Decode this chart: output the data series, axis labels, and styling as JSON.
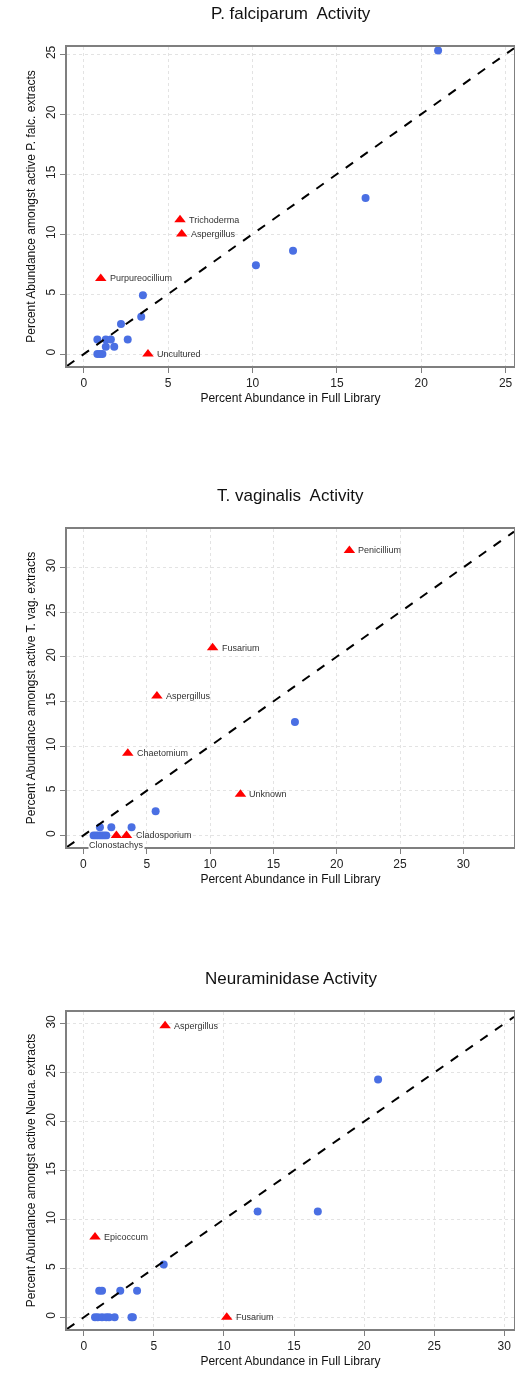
{
  "chart_data": [
    {
      "type": "scatter",
      "title": "P. falciparum  Activity",
      "xlabel": "Percent Abundance in Full Library",
      "ylabel": "Percent Abundance amongst active P. falc. extracts",
      "xlim": [
        -1.0,
        25.5
      ],
      "ylim": [
        -1.0,
        25.6
      ],
      "xticks": [
        0,
        5,
        10,
        15,
        20,
        25
      ],
      "yticks": [
        0,
        5,
        10,
        15,
        20,
        25
      ],
      "grid": true,
      "series": [
        {
          "color": "#4a6fe3",
          "marker": "circle",
          "x": [
            21.0,
            16.7,
            12.4,
            10.2,
            3.5,
            3.4,
            2.2,
            2.6,
            0.8,
            1.3,
            1.6,
            1.3,
            1.8,
            0.8,
            0.95,
            1.1
          ],
          "values": [
            25.3,
            13.0,
            8.6,
            7.4,
            4.9,
            3.1,
            2.5,
            1.2,
            1.2,
            1.2,
            1.2,
            0.6,
            0.6,
            0,
            0,
            0
          ]
        },
        {
          "color": "#ff0000",
          "marker": "triangle",
          "x": [
            5.7,
            5.8,
            1.0,
            3.8
          ],
          "values": [
            11.2,
            10.0,
            6.3,
            0
          ]
        },
        {
          "type": "line",
          "color": "#000000",
          "line_style": "dashed",
          "marker": "none",
          "x": [
            -1.0,
            25.5
          ],
          "values": [
            -1.0,
            25.5
          ]
        }
      ],
      "annotations": [
        {
          "text": "Trichoderma",
          "x": 5.7,
          "y": 11.2
        },
        {
          "text": "Aspergillus",
          "x": 5.8,
          "y": 10.0
        },
        {
          "text": "Purpureocillium",
          "x": 1.0,
          "y": 6.3
        },
        {
          "text": "Uncultured",
          "x": 3.8,
          "y": 0
        }
      ]
    },
    {
      "type": "scatter",
      "title": "T. vaginalis  Activity",
      "xlabel": "Percent Abundance in Full Library",
      "ylabel": "Percent Abundance amongst active T. vag. extracts",
      "xlim": [
        -1.3,
        34.0
      ],
      "ylim": [
        -1.3,
        34.3
      ],
      "xticks": [
        0,
        5,
        10,
        15,
        20,
        25,
        30
      ],
      "yticks": [
        0,
        5,
        10,
        15,
        20,
        25,
        30
      ],
      "grid": true,
      "series": [
        {
          "color": "#4a6fe3",
          "marker": "circle",
          "x": [
            16.7,
            5.7,
            1.3,
            2.2,
            3.8,
            0.8,
            1.0,
            1.2,
            1.4,
            1.6,
            1.8
          ],
          "values": [
            12.7,
            2.7,
            0.9,
            0.9,
            0.9,
            0,
            0,
            0,
            0,
            0,
            0
          ]
        },
        {
          "color": "#ff0000",
          "marker": "triangle",
          "x": [
            21.0,
            10.2,
            5.8,
            3.5,
            12.4,
            3.4,
            2.6
          ],
          "values": [
            31.9,
            21.0,
            15.6,
            9.2,
            4.6,
            0,
            0
          ]
        },
        {
          "type": "line",
          "color": "#000000",
          "line_style": "dashed",
          "marker": "none",
          "x": [
            -1.3,
            34.0
          ],
          "values": [
            -1.3,
            34.0
          ]
        }
      ],
      "annotations": [
        {
          "text": "Penicillium",
          "x": 21.0,
          "y": 31.9
        },
        {
          "text": "Fusarium",
          "x": 10.2,
          "y": 21.0
        },
        {
          "text": "Aspergillus",
          "x": 5.8,
          "y": 15.6
        },
        {
          "text": "Chaetomium",
          "x": 3.5,
          "y": 9.2
        },
        {
          "text": "Unknown",
          "x": 12.4,
          "y": 4.6
        },
        {
          "text": "Cladosporium",
          "x": 3.4,
          "y": 0
        },
        {
          "text": "Clonostachys",
          "x": 2.6,
          "y": 0
        }
      ]
    },
    {
      "type": "scatter",
      "title": "Neuraminidase Activity",
      "xlabel": "Percent Abundance in Full Library",
      "ylabel": "Percent Abundance amongst active Neura. extracts",
      "xlim": [
        -1.2,
        30.7
      ],
      "ylim": [
        -1.2,
        31.2
      ],
      "xticks": [
        0,
        5,
        10,
        15,
        20,
        25,
        30
      ],
      "yticks": [
        0,
        5,
        10,
        15,
        20,
        25,
        30
      ],
      "grid": true,
      "series": [
        {
          "color": "#4a6fe3",
          "marker": "circle",
          "x": [
            21.0,
            12.4,
            16.7,
            5.7,
            1.1,
            1.3,
            2.6,
            3.8,
            0.8,
            1.0,
            1.3,
            1.6,
            1.8,
            2.2,
            3.4,
            3.5
          ],
          "values": [
            24.3,
            10.8,
            10.8,
            5.4,
            2.7,
            2.7,
            2.7,
            2.7,
            0,
            0,
            0,
            0,
            0,
            0,
            0,
            0
          ]
        },
        {
          "color": "#ff0000",
          "marker": "triangle",
          "x": [
            5.8,
            0.8,
            10.2
          ],
          "values": [
            29.8,
            8.2,
            0
          ]
        },
        {
          "type": "line",
          "color": "#000000",
          "line_style": "dashed",
          "marker": "none",
          "x": [
            -1.2,
            30.7
          ],
          "values": [
            -1.2,
            30.7
          ]
        }
      ],
      "annotations": [
        {
          "text": "Aspergillus",
          "x": 5.8,
          "y": 29.8
        },
        {
          "text": "Epicoccum",
          "x": 0.8,
          "y": 8.2
        },
        {
          "text": "Fusarium",
          "x": 10.2,
          "y": 0
        }
      ]
    }
  ]
}
